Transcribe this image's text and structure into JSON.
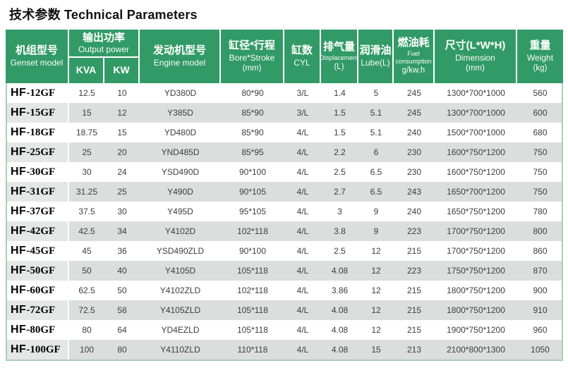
{
  "page": {
    "title": "技术参数 Technical Parameters"
  },
  "colors": {
    "header_green": "#319a66",
    "stripe_gray": "#dcdddd",
    "stripe_first_col": "#e5e6e6",
    "outer_border": "#a8cfba",
    "cell_text": "#3d3d3d"
  },
  "table": {
    "columns": [
      {
        "zh": "机组型号",
        "en": "Genset model"
      },
      {
        "zh": "输出功率",
        "en": "Output power",
        "sub": [
          "KVA",
          "KW"
        ]
      },
      {
        "zh": "发动机型号",
        "en": "Engine model"
      },
      {
        "zh": "缸径*行程",
        "en": "Bore*Stroke",
        "unit": "(mm)"
      },
      {
        "zh": "缸数",
        "en": "CYL"
      },
      {
        "zh": "排气量",
        "en": "Displacement",
        "unit": "(L)"
      },
      {
        "zh": "润滑油",
        "en": "Lube(L)"
      },
      {
        "zh": "燃油耗",
        "en": "Fuel consumption",
        "unit": "g/kw.h"
      },
      {
        "zh": "尺寸(L*W*H)",
        "en": "Dimension",
        "unit": "(mm)"
      },
      {
        "zh": "重量",
        "en": "Weight",
        "unit": "(kg)"
      }
    ],
    "rows": [
      [
        "HF-12GF",
        "12.5",
        "10",
        "YD380D",
        "80*90",
        "3/L",
        "1.4",
        "5",
        "245",
        "1300*700*1000",
        "560"
      ],
      [
        "HF-15GF",
        "15",
        "12",
        "Y385D",
        "85*90",
        "3/L",
        "1.5",
        "5.1",
        "245",
        "1300*700*1000",
        "600"
      ],
      [
        "HF-18GF",
        "18.75",
        "15",
        "YD480D",
        "85*90",
        "4/L",
        "1.5",
        "5.1",
        "240",
        "1500*700*1000",
        "680"
      ],
      [
        "HF-25GF",
        "25",
        "20",
        "YND485D",
        "85*95",
        "4/L",
        "2.2",
        "6",
        "230",
        "1600*750*1200",
        "750"
      ],
      [
        "HF-30GF",
        "30",
        "24",
        "YSD490D",
        "90*100",
        "4/L",
        "2.5",
        "6.5",
        "230",
        "1600*750*1200",
        "750"
      ],
      [
        "HF-31GF",
        "31.25",
        "25",
        "Y490D",
        "90*105",
        "4/L",
        "2.7",
        "6.5",
        "243",
        "1650*700*1200",
        "750"
      ],
      [
        "HF-37GF",
        "37.5",
        "30",
        "Y495D",
        "95*105",
        "4/L",
        "3",
        "9",
        "240",
        "1650*750*1200",
        "780"
      ],
      [
        "HF-42GF",
        "42.5",
        "34",
        "Y4102D",
        "102*118",
        "4/L",
        "3.8",
        "9",
        "223",
        "1700*750*1200",
        "800"
      ],
      [
        "HF-45GF",
        "45",
        "36",
        "YSD490ZLD",
        "90*100",
        "4/L",
        "2.5",
        "12",
        "215",
        "1700*750*1200",
        "860"
      ],
      [
        "HF-50GF",
        "50",
        "40",
        "Y4105D",
        "105*118",
        "4/L",
        "4.08",
        "12",
        "223",
        "1750*750*1200",
        "870"
      ],
      [
        "HF-60GF",
        "62.5",
        "50",
        "Y4102ZLD",
        "102*118",
        "4/L",
        "3.86",
        "12",
        "215",
        "1800*750*1200",
        "900"
      ],
      [
        "HF-72GF",
        "72.5",
        "58",
        "Y4105ZLD",
        "105*118",
        "4/L",
        "4.08",
        "12",
        "215",
        "1800*750*1200",
        "910"
      ],
      [
        "HF-80GF",
        "80",
        "64",
        "YD4EZLD",
        "105*118",
        "4/L",
        "4.08",
        "12",
        "215",
        "1900*750*1200",
        "960"
      ],
      [
        "HF-100GF",
        "100",
        "80",
        "Y4110ZLD",
        "110*118",
        "4/L",
        "4.08",
        "15",
        "213",
        "2100*800*1300",
        "1050"
      ]
    ]
  }
}
